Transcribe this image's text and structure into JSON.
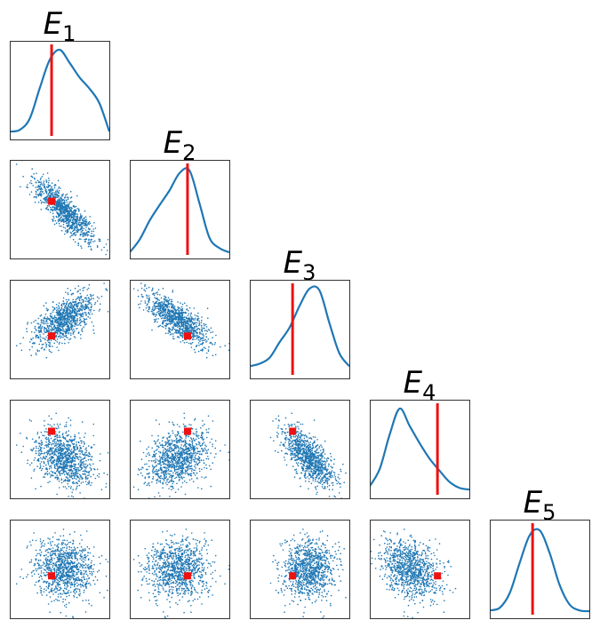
{
  "chart_data": {
    "type": "corner",
    "variables": [
      "E",
      "E",
      "E",
      "E",
      "E"
    ],
    "subscripts": [
      "1",
      "2",
      "3",
      "4",
      "5"
    ],
    "axis_range": [
      0,
      1
    ],
    "ticks": "none",
    "grid": false,
    "colors": {
      "samples": "#1f77b4",
      "truth": "#ee1111",
      "frame": "#333333"
    },
    "truth_values": [
      0.42,
      0.58,
      0.43,
      0.68,
      0.43
    ],
    "sample_means": [
      0.55,
      0.48,
      0.6,
      0.4,
      0.5
    ],
    "sample_stds": [
      0.15,
      0.16,
      0.14,
      0.15,
      0.15
    ],
    "correlations": [
      [
        1,
        -0.85,
        0.6,
        -0.3,
        0.0
      ],
      [
        -0.85,
        1,
        -0.75,
        0.35,
        0.0
      ],
      [
        0.6,
        -0.75,
        1,
        -0.72,
        0.0
      ],
      [
        -0.3,
        0.35,
        -0.72,
        1,
        -0.25
      ],
      [
        0.0,
        0.0,
        0.0,
        -0.25,
        1
      ]
    ],
    "n_samples": 1000,
    "marginal_density": {
      "x": [
        0,
        0.1,
        0.2,
        0.3,
        0.4,
        0.5,
        0.6,
        0.7,
        0.8,
        0.9,
        1.0
      ],
      "series": [
        [
          0.05,
          0.07,
          0.2,
          0.55,
          0.88,
          1.0,
          0.85,
          0.68,
          0.55,
          0.38,
          0.05
        ],
        [
          0.03,
          0.18,
          0.4,
          0.58,
          0.75,
          0.95,
          0.98,
          0.6,
          0.2,
          0.08,
          0.03
        ],
        [
          0.1,
          0.13,
          0.2,
          0.38,
          0.55,
          0.8,
          1.0,
          0.98,
          0.6,
          0.25,
          0.1
        ],
        [
          0.1,
          0.3,
          0.7,
          1.0,
          0.8,
          0.6,
          0.42,
          0.28,
          0.15,
          0.08,
          0.06
        ],
        [
          0.05,
          0.08,
          0.25,
          0.6,
          0.92,
          0.98,
          0.72,
          0.35,
          0.12,
          0.05,
          0.04
        ]
      ]
    }
  }
}
